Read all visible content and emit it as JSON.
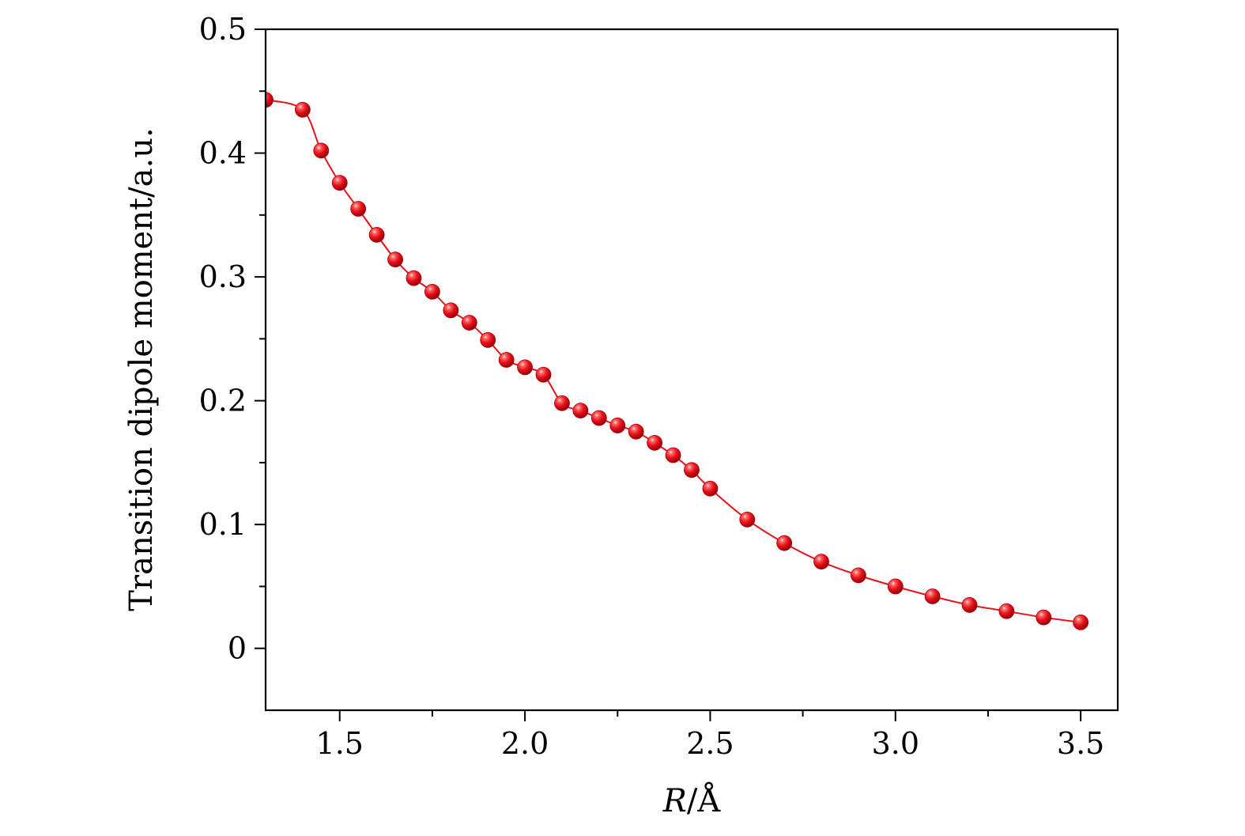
{
  "chart_data": {
    "type": "line",
    "xlabel_main": "R",
    "xlabel_unit": "/Å",
    "ylabel": "Transition dipole moment/a.u.",
    "xlim": [
      1.3,
      3.6
    ],
    "ylim": [
      -0.05,
      0.5
    ],
    "xticks": [
      {
        "value": 1.5,
        "label": "1.5"
      },
      {
        "value": 2.0,
        "label": "2.0"
      },
      {
        "value": 2.5,
        "label": "2.5"
      },
      {
        "value": 3.0,
        "label": "3.0"
      },
      {
        "value": 3.5,
        "label": "3.5"
      }
    ],
    "yticks": [
      {
        "value": 0,
        "label": "0"
      },
      {
        "value": 0.1,
        "label": "0.1"
      },
      {
        "value": 0.2,
        "label": "0.2"
      },
      {
        "value": 0.3,
        "label": "0.3"
      },
      {
        "value": 0.4,
        "label": "0.4"
      },
      {
        "value": 0.5,
        "label": "0.5"
      }
    ],
    "grid": false,
    "series": [
      {
        "color": "#e8121a",
        "marker": "sphere",
        "points": [
          [
            1.3,
            0.443
          ],
          [
            1.4,
            0.435
          ],
          [
            1.45,
            0.402
          ],
          [
            1.5,
            0.376
          ],
          [
            1.55,
            0.355
          ],
          [
            1.6,
            0.334
          ],
          [
            1.65,
            0.314
          ],
          [
            1.7,
            0.299
          ],
          [
            1.75,
            0.288
          ],
          [
            1.8,
            0.273
          ],
          [
            1.85,
            0.263
          ],
          [
            1.9,
            0.249
          ],
          [
            1.95,
            0.233
          ],
          [
            2.0,
            0.227
          ],
          [
            2.05,
            0.221
          ],
          [
            2.1,
            0.198
          ],
          [
            2.15,
            0.192
          ],
          [
            2.2,
            0.186
          ],
          [
            2.25,
            0.18
          ],
          [
            2.3,
            0.175
          ],
          [
            2.35,
            0.166
          ],
          [
            2.4,
            0.156
          ],
          [
            2.45,
            0.144
          ],
          [
            2.5,
            0.129
          ],
          [
            2.6,
            0.104
          ],
          [
            2.7,
            0.085
          ],
          [
            2.8,
            0.07
          ],
          [
            2.9,
            0.059
          ],
          [
            3.0,
            0.05
          ],
          [
            3.1,
            0.042
          ],
          [
            3.2,
            0.035
          ],
          [
            3.3,
            0.03
          ],
          [
            3.4,
            0.025
          ],
          [
            3.5,
            0.021
          ]
        ]
      }
    ]
  }
}
